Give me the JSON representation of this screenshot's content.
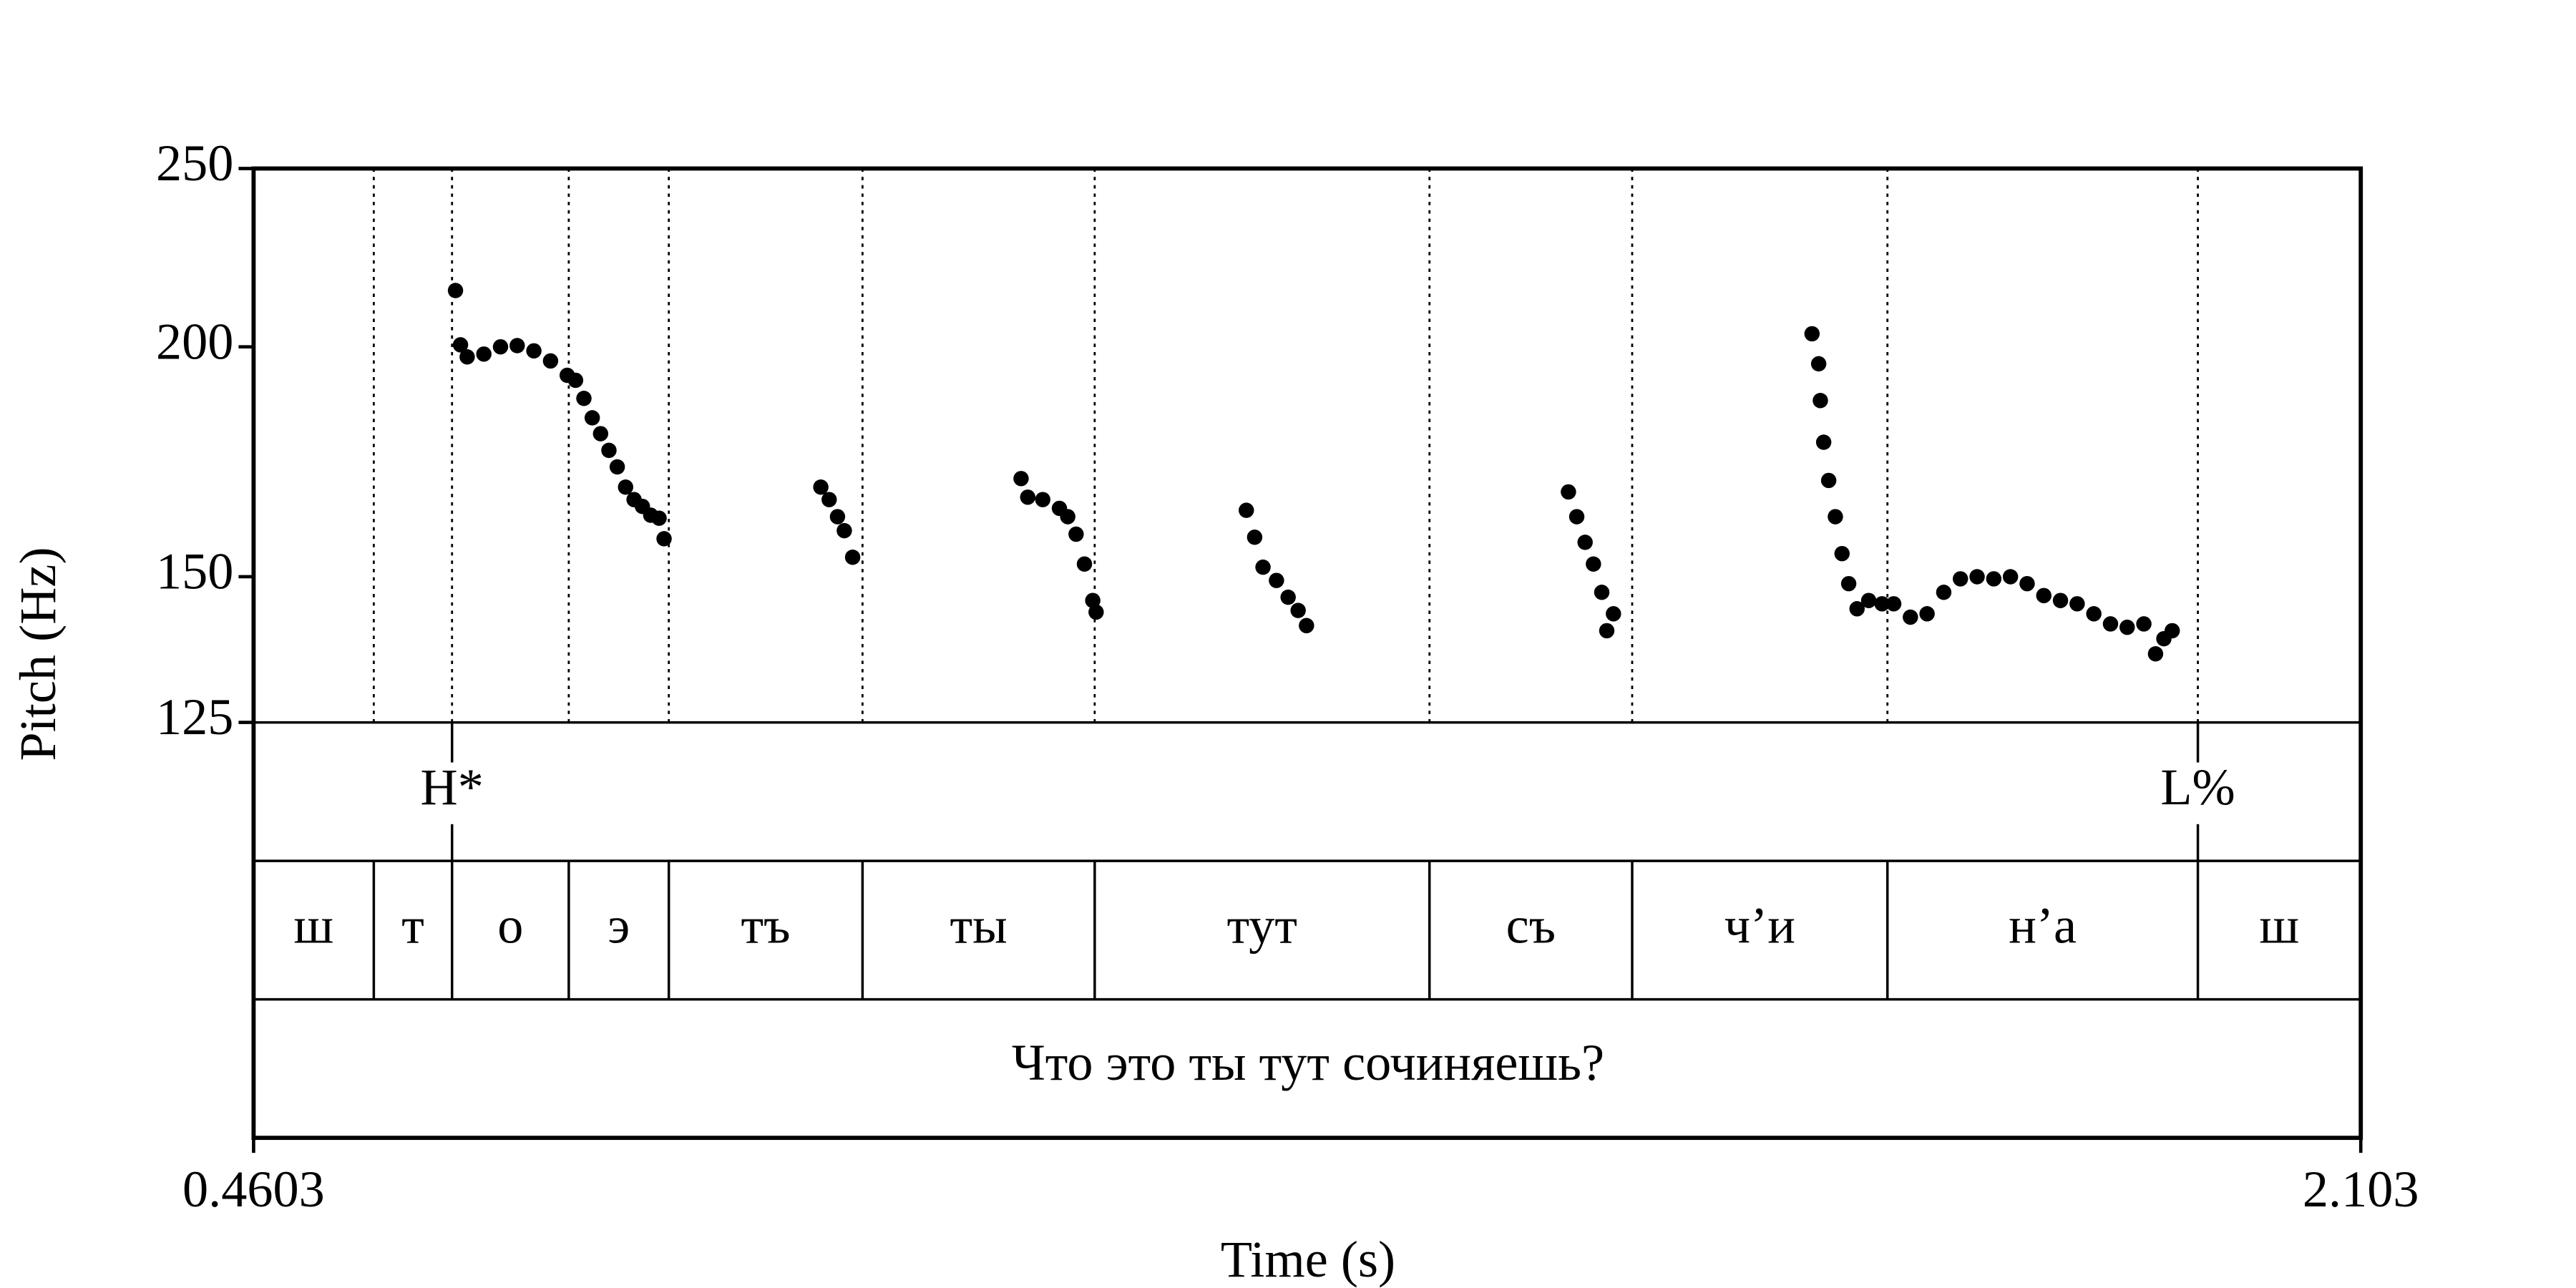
{
  "chart_data": {
    "type": "scatter",
    "xlabel": "Time (s)",
    "ylabel": "Pitch (Hz)",
    "xlim": [
      0.4603,
      2.103
    ],
    "xticks": [
      0.4603,
      2.103
    ],
    "ylim": [
      125,
      250
    ],
    "yticks": [
      125,
      150,
      200,
      250
    ],
    "log_y": true,
    "color": "#000000",
    "x": [
      0.6177,
      0.6216,
      0.6268,
      0.6398,
      0.6528,
      0.6658,
      0.6788,
      0.6918,
      0.7048,
      0.7113,
      0.7178,
      0.7243,
      0.7308,
      0.7373,
      0.7438,
      0.7503,
      0.7569,
      0.7634,
      0.7699,
      0.7764,
      0.7803,
      0.9025,
      0.909,
      0.9155,
      0.9208,
      0.9273,
      1.0586,
      1.0638,
      1.0755,
      1.0885,
      1.095,
      1.1015,
      1.108,
      1.1145,
      1.1171,
      1.2342,
      1.2407,
      1.2472,
      1.2577,
      1.2668,
      1.2746,
      1.2811,
      1.4853,
      1.4918,
      1.4983,
      1.5048,
      1.5113,
      1.5152,
      1.5204,
      1.6752,
      1.6804,
      1.6817,
      1.6843,
      1.6882,
      1.6934,
      1.6986,
      1.7038,
      1.7103,
      1.7194,
      1.7298,
      1.7389,
      1.7519,
      1.7649,
      1.7779,
      1.7909,
      1.8039,
      1.8169,
      1.8299,
      1.8429,
      1.8559,
      1.8689,
      1.8819,
      1.8949,
      1.9079,
      1.9209,
      1.9339,
      1.943,
      1.9495,
      1.956
    ],
    "values": [
      214.6,
      200.5,
      197.5,
      198.2,
      200,
      200.3,
      199,
      196.5,
      193,
      191.8,
      187.5,
      183,
      179.4,
      175.7,
      172.1,
      167.8,
      165.2,
      163.8,
      162,
      161.4,
      157.3,
      167.8,
      165.2,
      161.7,
      158.9,
      153.7,
      169.6,
      165.7,
      165.2,
      163.4,
      161.7,
      158.2,
      152.4,
      145.6,
      143.5,
      163,
      157.6,
      151.8,
      149.3,
      146.2,
      143.8,
      141.1,
      166.8,
      161.7,
      156.6,
      152.4,
      147.1,
      140.2,
      143.2,
      203.3,
      195.8,
      187,
      177.5,
      169.2,
      161.7,
      154.4,
      148.7,
      144.1,
      145.6,
      145,
      145,
      142.6,
      143.2,
      147.1,
      149.6,
      150,
      149.6,
      150,
      148.7,
      146.5,
      145.6,
      145,
      143.2,
      141.4,
      140.8,
      141.4,
      136.2,
      138.8,
      140.2
    ],
    "tiers": {
      "tone": {
        "times": [
          0.615,
          1.976
        ],
        "labels": [
          "H*",
          "L%"
        ]
      },
      "segments": {
        "boundaries": [
          0.554,
          0.615,
          0.706,
          0.784,
          0.935,
          1.116,
          1.377,
          1.535,
          1.734,
          1.976
        ],
        "labels": [
          "ш",
          "т",
          "о",
          "э",
          "тъ",
          "ты",
          "тут",
          "съ",
          "ч’и",
          "н’а",
          "ш"
        ]
      },
      "sentence": "Что это ты тут сочиняешь?"
    }
  }
}
